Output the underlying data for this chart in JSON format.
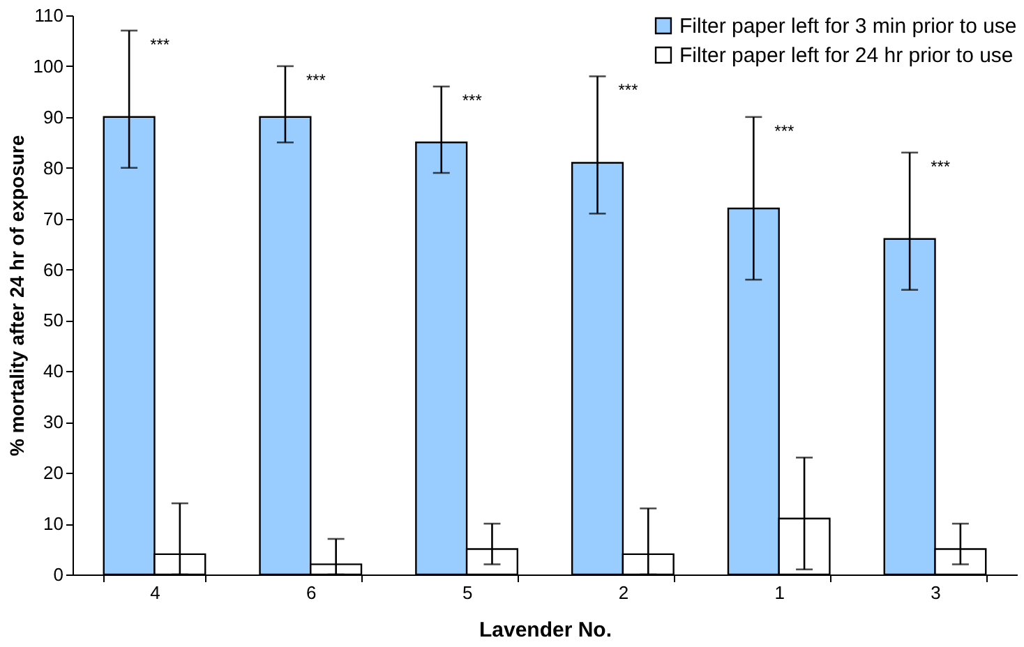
{
  "chart_data": {
    "type": "bar",
    "xlabel": "Lavender No.",
    "ylabel": "% mortality after 24 hr of exposure",
    "categories": [
      "4",
      "6",
      "5",
      "2",
      "1",
      "3"
    ],
    "series": [
      {
        "name": "Filter paper left for 3 min prior to use",
        "color": "#99ccff",
        "values": [
          90,
          90,
          85,
          81,
          72,
          66
        ],
        "errors": [
          [
            80,
            107
          ],
          [
            85,
            100
          ],
          [
            79,
            96
          ],
          [
            71,
            98
          ],
          [
            58,
            90
          ],
          [
            56,
            83
          ]
        ]
      },
      {
        "name": "Filter paper left for 24 hr prior to use",
        "color": "#ffffff",
        "values": [
          4,
          2,
          5,
          4,
          11,
          5
        ],
        "errors": [
          [
            0,
            14
          ],
          [
            0,
            7
          ],
          [
            2,
            10
          ],
          [
            0,
            13
          ],
          [
            1,
            23
          ],
          [
            2,
            10
          ]
        ]
      }
    ],
    "ylim": [
      0,
      110
    ],
    "yticks": [
      0,
      10,
      20,
      30,
      40,
      50,
      60,
      70,
      80,
      90,
      100,
      110
    ],
    "annotations": [
      "***",
      "***",
      "***",
      "***",
      "***",
      "***"
    ],
    "grid": false,
    "legend": "top right"
  }
}
